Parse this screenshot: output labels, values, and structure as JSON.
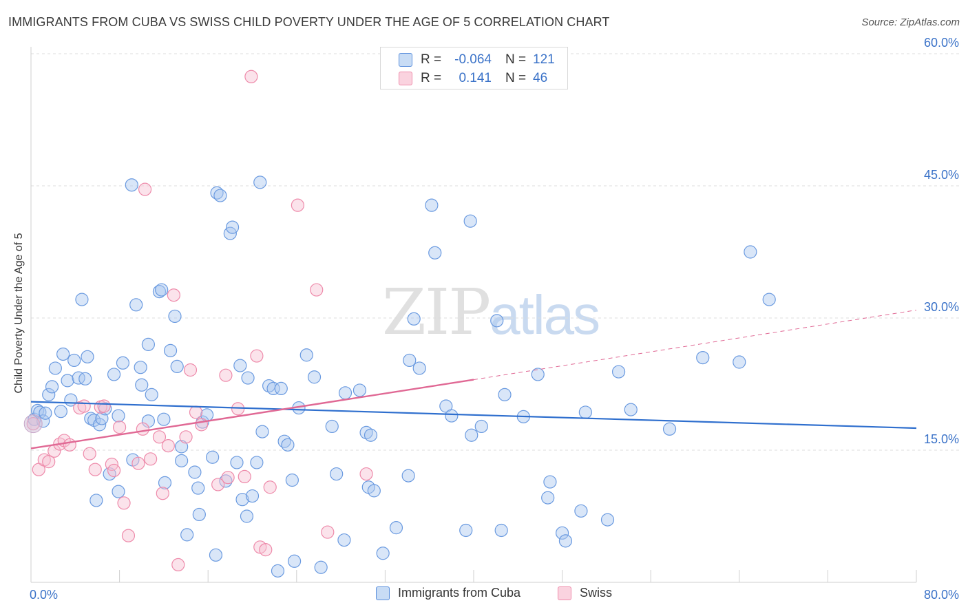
{
  "header": {
    "title": "IMMIGRANTS FROM CUBA VS SWISS CHILD POVERTY UNDER THE AGE OF 5 CORRELATION CHART",
    "source": "Source: ZipAtlas.com"
  },
  "watermark": {
    "zip": "ZIP",
    "atlas": "atlas"
  },
  "colors": {
    "blue": "#5b8fdc",
    "blue_fill": "#aac8f0",
    "blue_line": "#2f6fce",
    "pink": "#ee8aaa",
    "pink_fill": "#f7c2d3",
    "pink_line": "#e06894",
    "tick_text": "#3a72c8",
    "grid": "#dddddd"
  },
  "stats_legend": [
    {
      "swatch": "blue",
      "r_label": "R =",
      "r_value": "-0.064",
      "n_label": "N =",
      "n_value": "121"
    },
    {
      "swatch": "pink",
      "r_label": "R =",
      "r_value": "0.141",
      "n_label": "N =",
      "n_value": "46"
    }
  ],
  "bottom_legend": [
    {
      "label": "Immigrants from Cuba",
      "swatch": "blue"
    },
    {
      "label": "Swiss",
      "swatch": "pink"
    }
  ],
  "chart_data": {
    "type": "scatter",
    "title": "IMMIGRANTS FROM CUBA VS SWISS CHILD POVERTY UNDER THE AGE OF 5 CORRELATION CHART",
    "xlabel": "",
    "ylabel": "Child Poverty Under the Age of 5",
    "xlim": [
      0,
      80
    ],
    "ylim": [
      0,
      60
    ],
    "x_tick_labels": [
      "0.0%",
      "80.0%"
    ],
    "y_ticks": [
      15,
      30,
      45,
      60
    ],
    "y_tick_labels": [
      "15.0%",
      "30.0%",
      "45.0%",
      "60.0%"
    ],
    "grid": "horizontal dashed",
    "legend_position": "top-center",
    "series": [
      {
        "name": "Immigrants from Cuba",
        "color": "#5b8fdc",
        "trend": {
          "x": [
            0,
            80
          ],
          "y": [
            20.5,
            17.5
          ],
          "style": "solid"
        },
        "points": [
          [
            0.3,
            18.5
          ],
          [
            0.6,
            19.5
          ],
          [
            0.8,
            19.3
          ],
          [
            1.1,
            18.3
          ],
          [
            1.3,
            19.2
          ],
          [
            1.6,
            21.3
          ],
          [
            1.9,
            22.2
          ],
          [
            2.2,
            24.3
          ],
          [
            2.7,
            19.4
          ],
          [
            2.9,
            25.9
          ],
          [
            3.3,
            22.9
          ],
          [
            3.6,
            20.7
          ],
          [
            3.9,
            25.2
          ],
          [
            4.3,
            23.2
          ],
          [
            4.6,
            32.1
          ],
          [
            4.9,
            23.1
          ],
          [
            5.1,
            25.6
          ],
          [
            5.4,
            18.6
          ],
          [
            5.7,
            18.4
          ],
          [
            5.9,
            9.3
          ],
          [
            6.2,
            17.9
          ],
          [
            6.4,
            18.6
          ],
          [
            6.7,
            19.7
          ],
          [
            7.1,
            12.3
          ],
          [
            7.5,
            23.6
          ],
          [
            7.9,
            18.9
          ],
          [
            8.3,
            24.9
          ],
          [
            7.9,
            10.3
          ],
          [
            9.1,
            45.1
          ],
          [
            9.2,
            13.9
          ],
          [
            9.5,
            31.5
          ],
          [
            9.9,
            24.4
          ],
          [
            10.0,
            22.4
          ],
          [
            10.6,
            27.0
          ],
          [
            10.9,
            21.3
          ],
          [
            10.6,
            18.3
          ],
          [
            11.6,
            33.0
          ],
          [
            11.8,
            33.2
          ],
          [
            12.0,
            18.5
          ],
          [
            12.1,
            11.3
          ],
          [
            12.6,
            26.3
          ],
          [
            13.0,
            30.2
          ],
          [
            13.2,
            24.5
          ],
          [
            13.6,
            15.4
          ],
          [
            13.6,
            13.8
          ],
          [
            14.1,
            5.4
          ],
          [
            14.8,
            12.5
          ],
          [
            15.1,
            10.7
          ],
          [
            15.2,
            7.7
          ],
          [
            15.5,
            18.2
          ],
          [
            15.9,
            19.0
          ],
          [
            16.4,
            14.2
          ],
          [
            16.7,
            3.1
          ],
          [
            16.8,
            44.2
          ],
          [
            17.1,
            43.9
          ],
          [
            17.6,
            11.5
          ],
          [
            18.0,
            39.6
          ],
          [
            18.2,
            40.3
          ],
          [
            18.6,
            13.6
          ],
          [
            18.9,
            24.6
          ],
          [
            19.1,
            9.4
          ],
          [
            19.5,
            7.5
          ],
          [
            19.6,
            23.2
          ],
          [
            20.0,
            9.8
          ],
          [
            20.4,
            13.6
          ],
          [
            20.7,
            45.4
          ],
          [
            20.9,
            17.1
          ],
          [
            21.5,
            22.3
          ],
          [
            21.9,
            22.0
          ],
          [
            22.3,
            1.3
          ],
          [
            22.6,
            22.0
          ],
          [
            22.9,
            16.0
          ],
          [
            23.2,
            15.6
          ],
          [
            23.6,
            11.6
          ],
          [
            23.8,
            2.4
          ],
          [
            24.2,
            19.8
          ],
          [
            24.9,
            25.8
          ],
          [
            25.6,
            23.3
          ],
          [
            26.2,
            1.7
          ],
          [
            27.2,
            17.7
          ],
          [
            27.6,
            12.3
          ],
          [
            28.3,
            4.8
          ],
          [
            28.4,
            21.5
          ],
          [
            29.7,
            21.8
          ],
          [
            30.3,
            17.0
          ],
          [
            30.5,
            10.8
          ],
          [
            30.7,
            16.7
          ],
          [
            31.0,
            10.4
          ],
          [
            31.8,
            3.3
          ],
          [
            33.0,
            6.2
          ],
          [
            34.1,
            12.1
          ],
          [
            34.2,
            25.2
          ],
          [
            34.6,
            29.9
          ],
          [
            35.1,
            24.3
          ],
          [
            36.2,
            42.8
          ],
          [
            36.5,
            37.4
          ],
          [
            37.5,
            20.0
          ],
          [
            38.0,
            18.9
          ],
          [
            39.3,
            5.9
          ],
          [
            39.7,
            41.0
          ],
          [
            39.8,
            16.7
          ],
          [
            40.7,
            17.7
          ],
          [
            42.1,
            29.7
          ],
          [
            42.5,
            5.9
          ],
          [
            42.8,
            21.3
          ],
          [
            44.5,
            18.8
          ],
          [
            45.8,
            23.6
          ],
          [
            46.7,
            9.6
          ],
          [
            46.9,
            11.4
          ],
          [
            48.0,
            5.6
          ],
          [
            48.3,
            4.7
          ],
          [
            49.7,
            8.1
          ],
          [
            50.1,
            19.3
          ],
          [
            52.1,
            7.1
          ],
          [
            53.1,
            23.9
          ],
          [
            54.2,
            19.6
          ],
          [
            57.7,
            17.4
          ],
          [
            60.7,
            25.5
          ],
          [
            64.0,
            25.0
          ],
          [
            65.0,
            37.5
          ],
          [
            66.7,
            32.1
          ]
        ]
      },
      {
        "name": "Swiss",
        "color": "#ee8aaa",
        "trend": {
          "x": [
            0,
            40,
            80
          ],
          "y": [
            15.2,
            23.0,
            30.9
          ],
          "solid_until": 40
        },
        "points": [
          [
            0.2,
            18.0
          ],
          [
            0.7,
            12.8
          ],
          [
            1.2,
            13.9
          ],
          [
            1.6,
            13.7
          ],
          [
            2.1,
            14.9
          ],
          [
            2.6,
            15.7
          ],
          [
            3.0,
            16.1
          ],
          [
            3.5,
            15.6
          ],
          [
            4.4,
            19.8
          ],
          [
            4.8,
            20.0
          ],
          [
            5.3,
            14.6
          ],
          [
            5.8,
            12.8
          ],
          [
            6.3,
            19.9
          ],
          [
            6.6,
            20.0
          ],
          [
            7.3,
            13.4
          ],
          [
            7.5,
            12.7
          ],
          [
            8.0,
            17.6
          ],
          [
            8.4,
            9.0
          ],
          [
            8.8,
            5.3
          ],
          [
            9.7,
            13.5
          ],
          [
            10.1,
            17.4
          ],
          [
            10.3,
            44.6
          ],
          [
            10.8,
            14.0
          ],
          [
            11.6,
            16.5
          ],
          [
            11.9,
            10.1
          ],
          [
            12.4,
            15.5
          ],
          [
            12.9,
            32.6
          ],
          [
            13.3,
            2.0
          ],
          [
            14.0,
            16.5
          ],
          [
            14.4,
            24.1
          ],
          [
            14.9,
            19.3
          ],
          [
            15.4,
            17.9
          ],
          [
            16.9,
            11.1
          ],
          [
            17.6,
            23.5
          ],
          [
            17.8,
            11.9
          ],
          [
            18.7,
            19.7
          ],
          [
            19.3,
            12.0
          ],
          [
            19.9,
            57.4
          ],
          [
            20.4,
            25.7
          ],
          [
            20.7,
            4.0
          ],
          [
            21.2,
            3.7
          ],
          [
            21.6,
            10.8
          ],
          [
            24.1,
            42.8
          ],
          [
            25.8,
            33.2
          ],
          [
            26.8,
            5.7
          ],
          [
            30.3,
            12.3
          ]
        ]
      }
    ]
  }
}
